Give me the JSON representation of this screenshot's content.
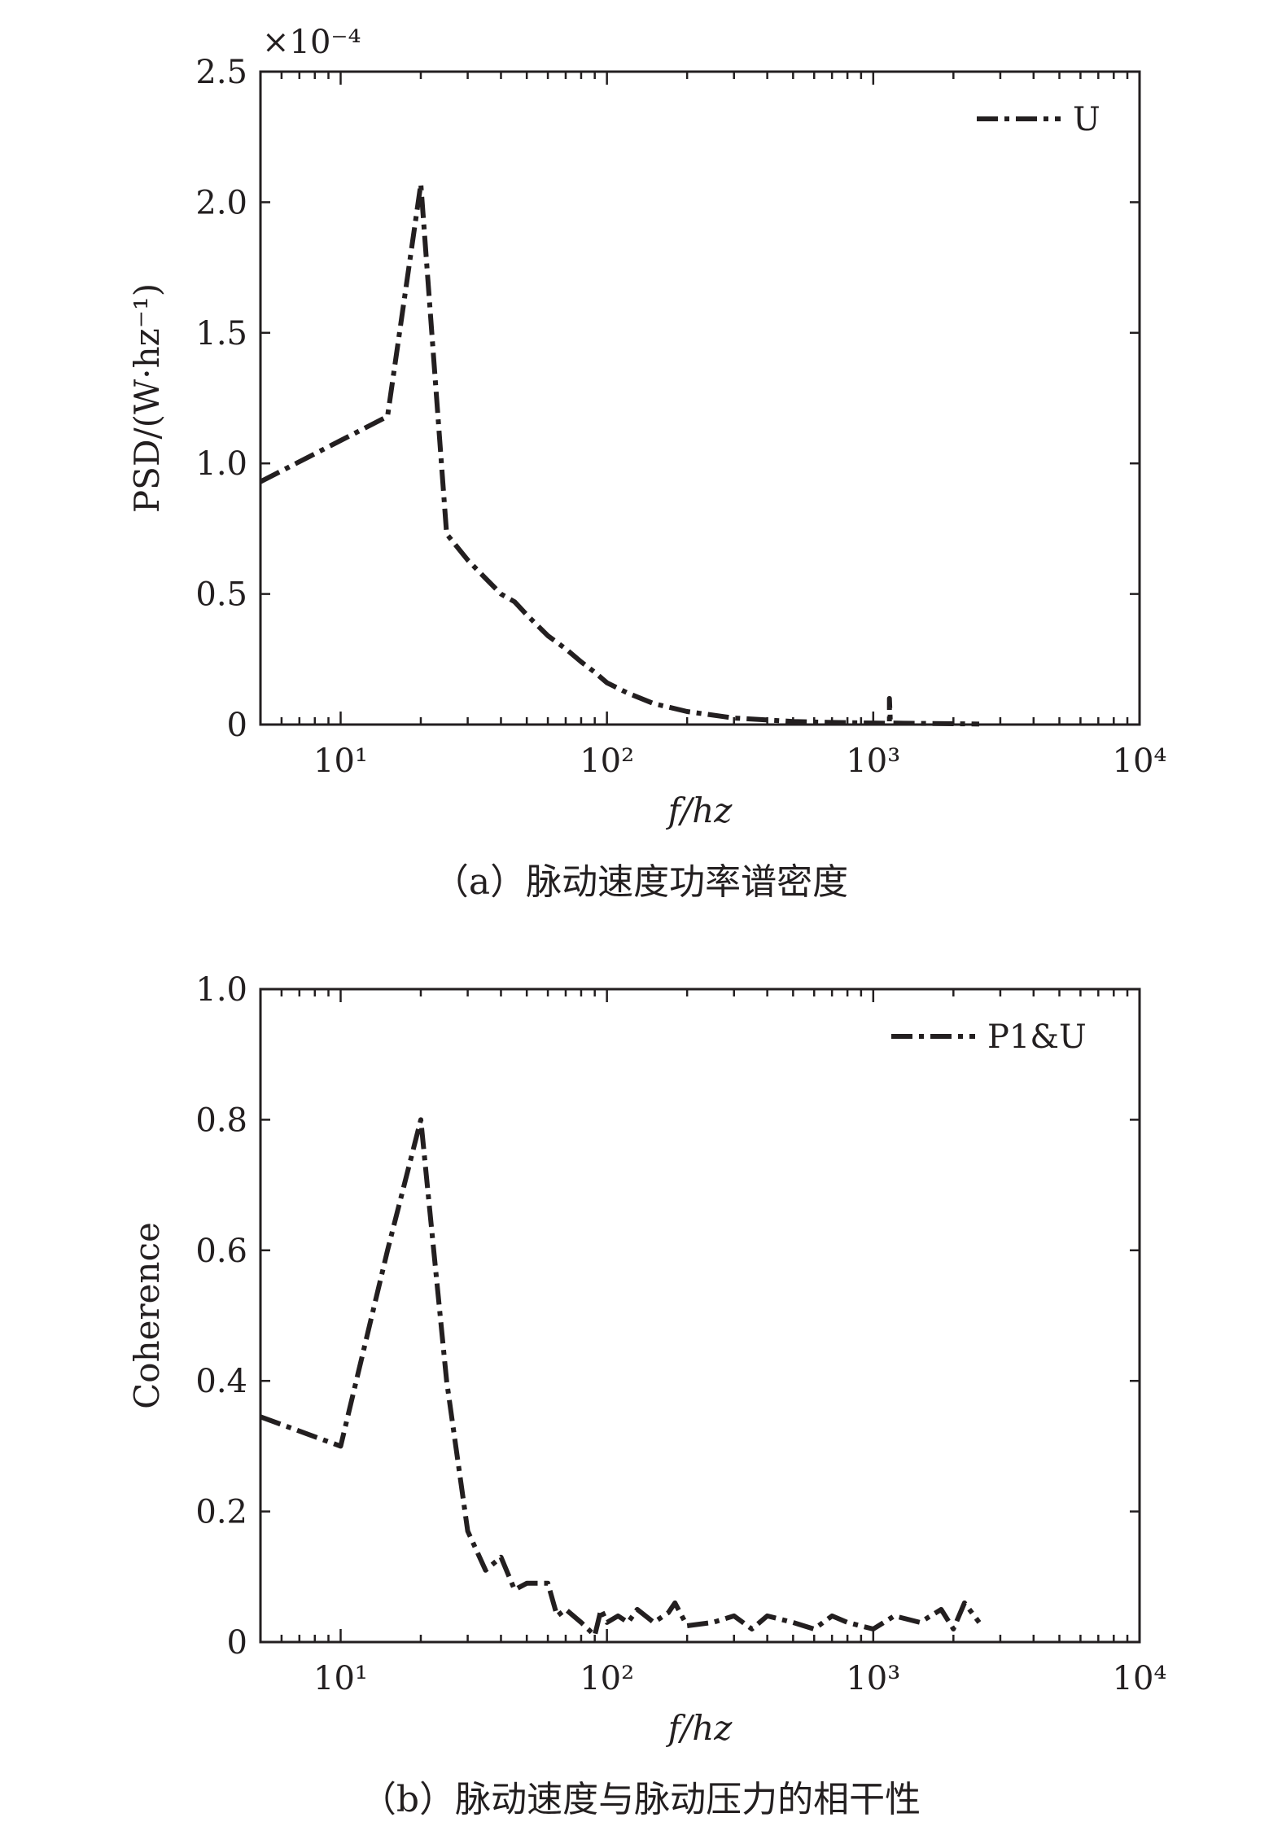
{
  "panels": [
    {
      "caption": "（a）脉动速度功率谱密度",
      "xlabel": "f/hz",
      "ylabel": "PSD/(W·hz⁻¹)",
      "y_multiplier": "×10⁻⁴",
      "legend": "U"
    },
    {
      "caption": "（b）脉动速度与脉动压力的相干性",
      "xlabel": "f/hz",
      "ylabel": "Coherence",
      "y_multiplier": "",
      "legend": "P1&U"
    }
  ],
  "chart_data": [
    {
      "type": "line",
      "xscale": "log",
      "xlim": [
        5,
        10000
      ],
      "ylim": [
        0,
        2.5
      ],
      "xticks": [
        "10¹",
        "10²",
        "10³",
        "10⁴"
      ],
      "yticks": [
        "0",
        "0.5",
        "1.0",
        "1.5",
        "2.0",
        "2.5"
      ],
      "ytick_values": [
        0,
        0.5,
        1.0,
        1.5,
        2.0,
        2.5
      ],
      "xlabel": "f/hz",
      "ylabel": "PSD/(W·hz⁻¹)",
      "y_multiplier": "×10⁻⁴",
      "legend_position": "top-right",
      "grid": false,
      "series": [
        {
          "name": "U",
          "x": [
            5,
            15,
            20,
            25,
            30,
            35,
            40,
            45,
            50,
            60,
            70,
            80,
            90,
            100,
            120,
            150,
            200,
            300,
            500,
            700,
            1000,
            1150,
            1150,
            1160,
            1300,
            2000,
            2500
          ],
          "y": [
            0.93,
            1.18,
            2.07,
            0.73,
            0.63,
            0.56,
            0.5,
            0.47,
            0.42,
            0.34,
            0.29,
            0.24,
            0.2,
            0.16,
            0.12,
            0.08,
            0.05,
            0.025,
            0.012,
            0.008,
            0.006,
            0.005,
            0.1,
            0.006,
            0.005,
            0.003,
            0.002
          ]
        }
      ]
    },
    {
      "type": "line",
      "xscale": "log",
      "xlim": [
        5,
        10000
      ],
      "ylim": [
        0,
        1.0
      ],
      "xticks": [
        "10¹",
        "10²",
        "10³",
        "10⁴"
      ],
      "yticks": [
        "0",
        "0.2",
        "0.4",
        "0.6",
        "0.8",
        "1.0"
      ],
      "ytick_values": [
        0,
        0.2,
        0.4,
        0.6,
        0.8,
        1.0
      ],
      "xlabel": "f/hz",
      "ylabel": "Coherence",
      "legend_position": "top-right",
      "grid": false,
      "series": [
        {
          "name": "P1&U",
          "x": [
            5,
            10,
            15,
            20,
            25,
            30,
            35,
            40,
            45,
            50,
            60,
            65,
            70,
            80,
            90,
            95,
            100,
            110,
            120,
            130,
            150,
            170,
            180,
            200,
            250,
            300,
            350,
            400,
            500,
            600,
            700,
            800,
            1000,
            1200,
            1500,
            1800,
            2000,
            2200,
            2500
          ],
          "y": [
            0.345,
            0.3,
            0.6,
            0.8,
            0.4,
            0.17,
            0.11,
            0.13,
            0.08,
            0.09,
            0.09,
            0.04,
            0.05,
            0.03,
            0.01,
            0.05,
            0.03,
            0.04,
            0.03,
            0.05,
            0.03,
            0.045,
            0.06,
            0.025,
            0.03,
            0.04,
            0.02,
            0.04,
            0.03,
            0.02,
            0.04,
            0.03,
            0.02,
            0.04,
            0.03,
            0.05,
            0.02,
            0.06,
            0.03
          ]
        }
      ]
    }
  ]
}
